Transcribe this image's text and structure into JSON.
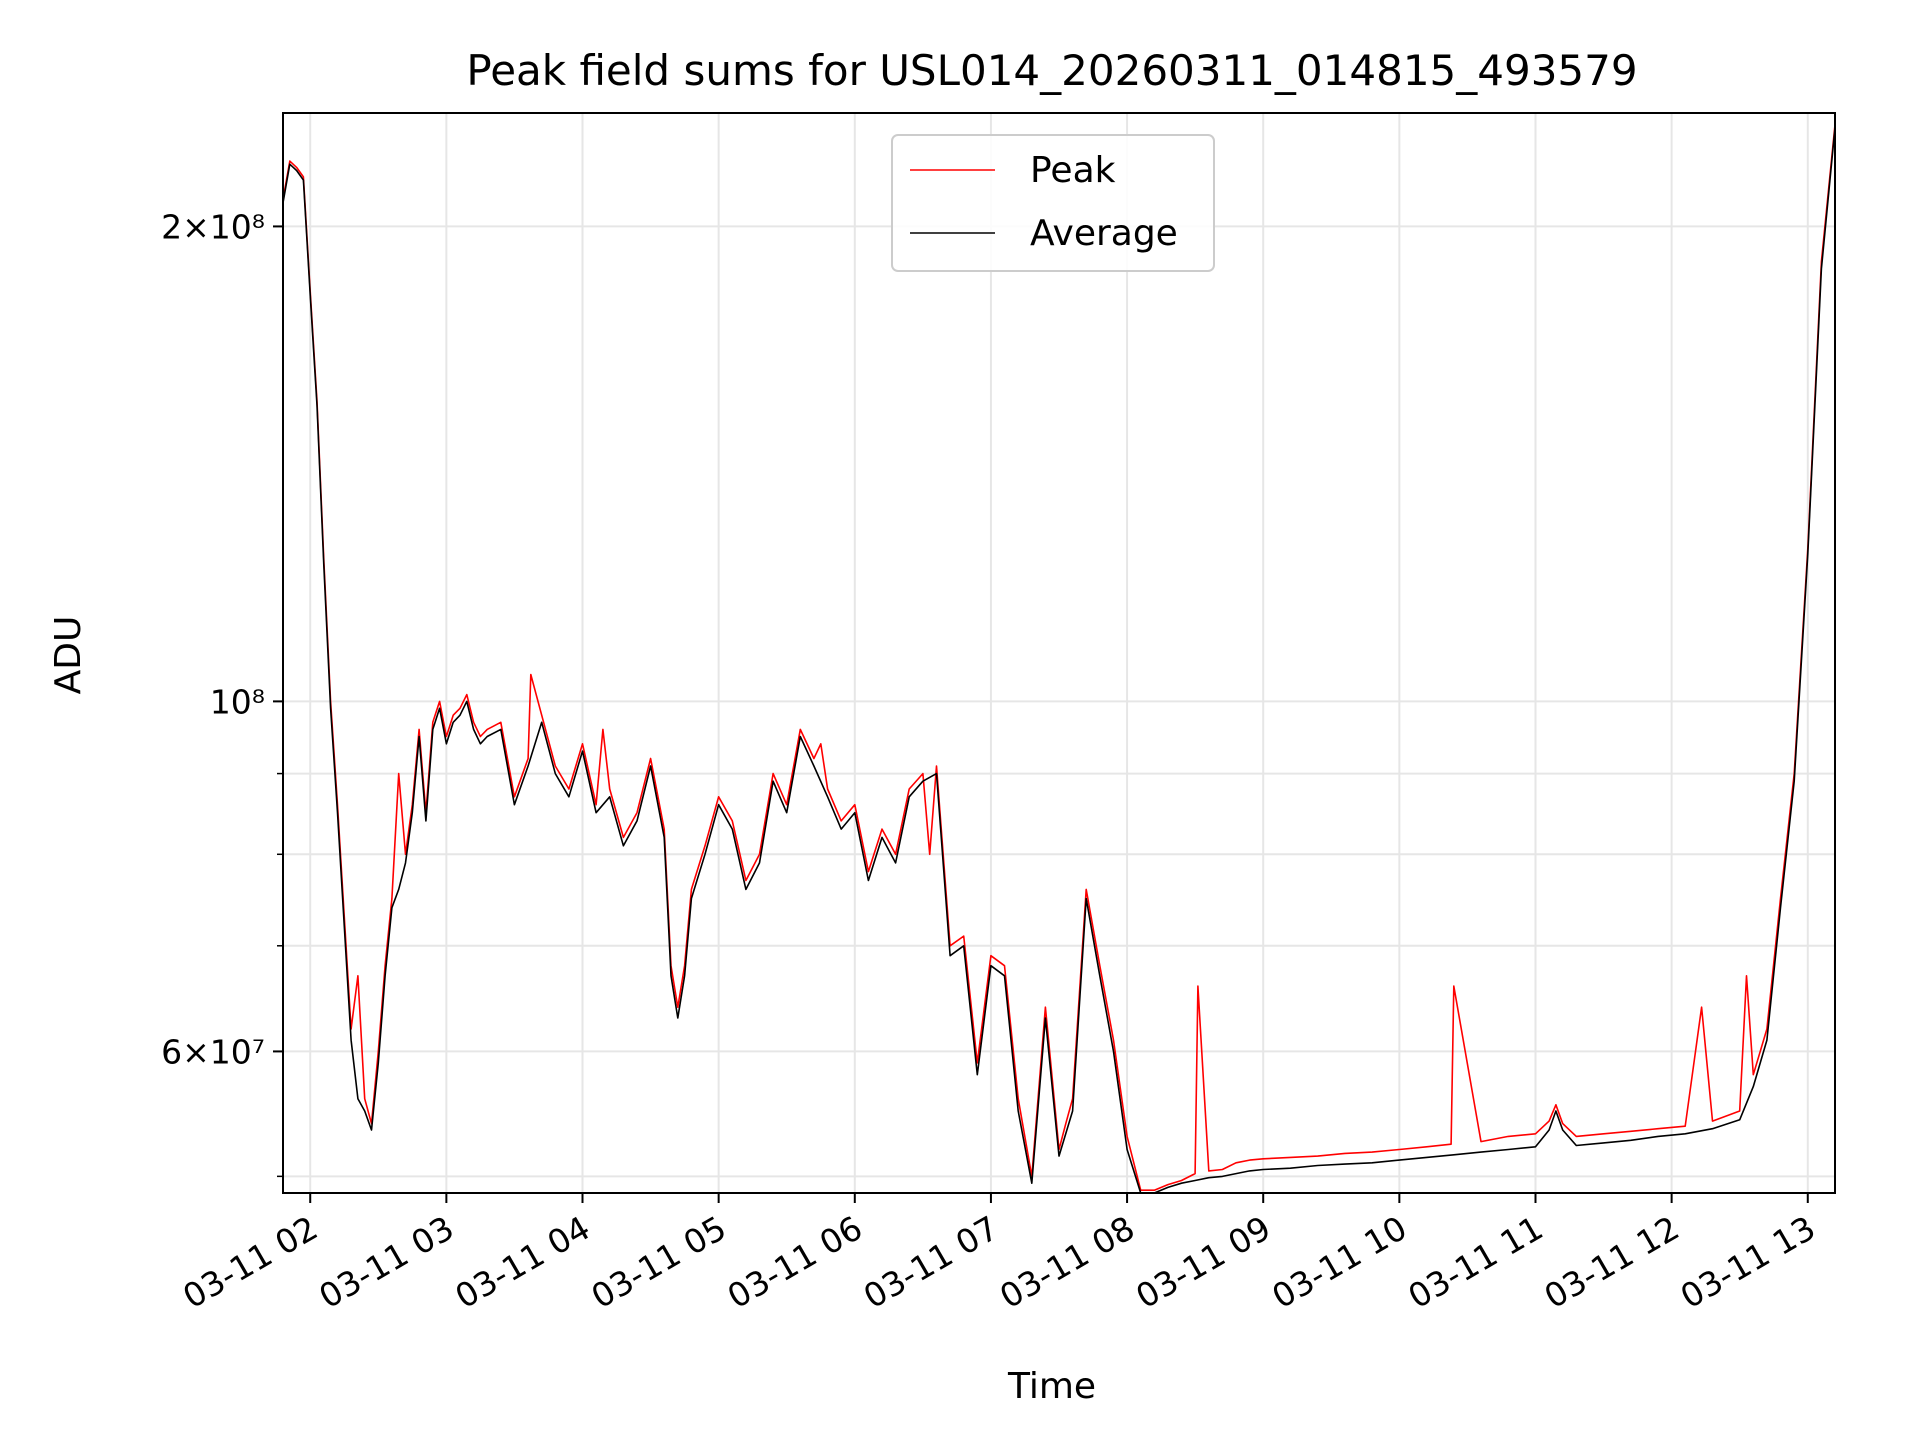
{
  "chart_data": {
    "type": "line",
    "title": "Peak field sums for USL014_20260311_014815_493579",
    "xlabel": "Time",
    "ylabel": "ADU",
    "yscale": "log",
    "grid": true,
    "legend_position": "top-center",
    "x_ticks": [
      "03-11 02",
      "03-11 03",
      "03-11 04",
      "03-11 05",
      "03-11 06",
      "03-11 07",
      "03-11 08",
      "03-11 09",
      "03-11 10",
      "03-11 11",
      "03-11 12",
      "03-11 13"
    ],
    "y_tick_labels": [
      "2×10⁸",
      "10⁸",
      "6×10⁷"
    ],
    "y_tick_values": [
      200000000,
      100000000,
      60000000
    ],
    "xlim_hours": [
      1.8,
      13.2
    ],
    "ylim": [
      48800000,
      236000000
    ],
    "x_unit": "hours after 2026-03-11 00:00",
    "series": [
      {
        "name": "Peak",
        "color": "#ff0000",
        "x": [
          1.8,
          1.85,
          1.9,
          1.95,
          2.0,
          2.05,
          2.1,
          2.15,
          2.2,
          2.25,
          2.3,
          2.35,
          2.4,
          2.45,
          2.5,
          2.55,
          2.6,
          2.65,
          2.7,
          2.75,
          2.8,
          2.85,
          2.9,
          2.95,
          2.98,
          3.0,
          3.05,
          3.1,
          3.15,
          3.2,
          3.25,
          3.3,
          3.4,
          3.5,
          3.6,
          3.62,
          3.7,
          3.8,
          3.9,
          4.0,
          4.1,
          4.15,
          4.2,
          4.3,
          4.4,
          4.5,
          4.6,
          4.65,
          4.7,
          4.75,
          4.8,
          4.9,
          5.0,
          5.1,
          5.2,
          5.3,
          5.4,
          5.5,
          5.6,
          5.7,
          5.75,
          5.8,
          5.9,
          6.0,
          6.1,
          6.2,
          6.3,
          6.4,
          6.5,
          6.55,
          6.6,
          6.7,
          6.8,
          6.9,
          7.0,
          7.1,
          7.2,
          7.3,
          7.4,
          7.5,
          7.55,
          7.6,
          7.7,
          7.8,
          7.9,
          8.0,
          8.1,
          8.2,
          8.3,
          8.4,
          8.5,
          8.52,
          8.6,
          8.7,
          8.8,
          8.9,
          9.0,
          9.2,
          9.4,
          9.6,
          9.8,
          10.0,
          10.2,
          10.38,
          10.4,
          10.6,
          10.8,
          11.0,
          11.1,
          11.15,
          11.2,
          11.3,
          11.5,
          11.7,
          11.9,
          12.1,
          12.22,
          12.3,
          12.5,
          12.55,
          12.6,
          12.7,
          12.8,
          12.9,
          13.0,
          13.1,
          13.2
        ],
        "values": [
          208000000,
          220000000,
          218000000,
          215000000,
          182000000,
          155000000,
          123000000,
          100000000,
          86000000,
          73000000,
          62000000,
          67000000,
          56000000,
          54000000,
          60000000,
          68000000,
          75000000,
          90000000,
          80000000,
          86000000,
          96000000,
          85000000,
          97000000,
          100000000,
          97000000,
          95000000,
          98000000,
          99000000,
          101000000,
          97000000,
          95000000,
          96000000,
          97000000,
          87000000,
          92000000,
          104000000,
          98000000,
          91000000,
          88000000,
          94000000,
          86000000,
          96000000,
          88000000,
          82000000,
          85000000,
          92000000,
          83000000,
          68000000,
          64000000,
          68000000,
          76000000,
          81000000,
          87000000,
          84000000,
          77000000,
          80000000,
          90000000,
          86000000,
          96000000,
          92000000,
          94000000,
          88000000,
          84000000,
          86000000,
          78000000,
          83000000,
          80000000,
          88000000,
          90000000,
          80000000,
          91000000,
          70000000,
          71000000,
          59000000,
          69000000,
          68000000,
          56000000,
          50000000,
          64000000,
          52000000,
          54000000,
          56000000,
          76000000,
          68000000,
          61000000,
          53000000,
          49000000,
          49000000,
          49400000,
          49700000,
          50200000,
          66000000,
          50400000,
          50500000,
          51000000,
          51200000,
          51300000,
          51400000,
          51500000,
          51700000,
          51800000,
          52000000,
          52200000,
          52400000,
          66000000,
          52600000,
          53000000,
          53200000,
          54200000,
          55500000,
          54000000,
          53000000,
          53200000,
          53400000,
          53600000,
          53800000,
          64000000,
          54200000,
          55000000,
          67000000,
          58000000,
          62000000,
          75000000,
          90000000,
          125000000,
          190000000,
          232000000
        ]
      },
      {
        "name": "Average",
        "color": "#000000",
        "x": [
          1.8,
          1.85,
          1.9,
          1.95,
          2.0,
          2.05,
          2.1,
          2.15,
          2.2,
          2.25,
          2.3,
          2.35,
          2.4,
          2.45,
          2.5,
          2.55,
          2.6,
          2.65,
          2.7,
          2.75,
          2.8,
          2.85,
          2.9,
          2.95,
          3.0,
          3.05,
          3.1,
          3.15,
          3.2,
          3.25,
          3.3,
          3.4,
          3.5,
          3.6,
          3.7,
          3.8,
          3.9,
          4.0,
          4.1,
          4.2,
          4.3,
          4.4,
          4.5,
          4.6,
          4.65,
          4.7,
          4.75,
          4.8,
          4.9,
          5.0,
          5.1,
          5.2,
          5.3,
          5.4,
          5.5,
          5.6,
          5.7,
          5.8,
          5.9,
          6.0,
          6.1,
          6.2,
          6.3,
          6.4,
          6.5,
          6.6,
          6.7,
          6.8,
          6.9,
          7.0,
          7.1,
          7.2,
          7.3,
          7.4,
          7.5,
          7.6,
          7.7,
          7.8,
          7.9,
          8.0,
          8.1,
          8.2,
          8.3,
          8.4,
          8.5,
          8.6,
          8.7,
          8.8,
          8.9,
          9.0,
          9.2,
          9.4,
          9.6,
          9.8,
          10.0,
          10.2,
          10.4,
          10.6,
          10.8,
          11.0,
          11.1,
          11.15,
          11.2,
          11.3,
          11.5,
          11.7,
          11.9,
          12.1,
          12.3,
          12.5,
          12.6,
          12.7,
          12.8,
          12.9,
          13.0,
          13.1,
          13.2
        ],
        "values": [
          207000000,
          219000000,
          217000000,
          214000000,
          181000000,
          154000000,
          122000000,
          99000000,
          85000000,
          72000000,
          61000000,
          56000000,
          55000000,
          53500000,
          59000000,
          67000000,
          74000000,
          76000000,
          79000000,
          85000000,
          95000000,
          84000000,
          96000000,
          99000000,
          94000000,
          97000000,
          98000000,
          100000000,
          96000000,
          94000000,
          95000000,
          96000000,
          86000000,
          91000000,
          97000000,
          90000000,
          87000000,
          93000000,
          85000000,
          87000000,
          81000000,
          84000000,
          91000000,
          82000000,
          67000000,
          63000000,
          67000000,
          75000000,
          80000000,
          86000000,
          83000000,
          76000000,
          79000000,
          89000000,
          85000000,
          95000000,
          91000000,
          87000000,
          83000000,
          85000000,
          77000000,
          82000000,
          79000000,
          87000000,
          89000000,
          90000000,
          69000000,
          70000000,
          58000000,
          68000000,
          67000000,
          55000000,
          49500000,
          63000000,
          51500000,
          55000000,
          75000000,
          67000000,
          60000000,
          52000000,
          48800000,
          48800000,
          49200000,
          49500000,
          49700000,
          49900000,
          50000000,
          50200000,
          50400000,
          50500000,
          50600000,
          50800000,
          50900000,
          51000000,
          51200000,
          51400000,
          51600000,
          51800000,
          52000000,
          52200000,
          53500000,
          55000000,
          53500000,
          52300000,
          52500000,
          52700000,
          53000000,
          53200000,
          53600000,
          54300000,
          57000000,
          61000000,
          74000000,
          89000000,
          124000000,
          188000000,
          231000000
        ]
      }
    ]
  }
}
